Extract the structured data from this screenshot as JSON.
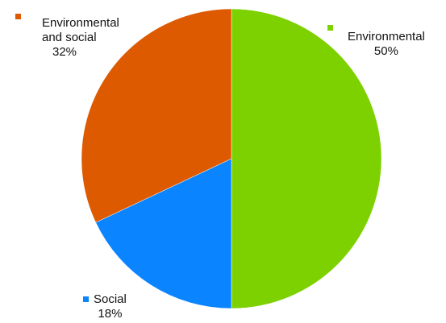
{
  "chart_data": {
    "type": "pie",
    "title": "",
    "slices": [
      {
        "label": "Environmental",
        "value": 50,
        "display": "50%",
        "color": "#7dd100"
      },
      {
        "label": "Social",
        "value": 18,
        "display": "18%",
        "color": "#0a84ff"
      },
      {
        "label": "Environmental and social",
        "value": 32,
        "display": "32%",
        "color": "#dd5a00"
      }
    ],
    "start_angle": "top, clockwise",
    "legend": "inline labels next to slices"
  },
  "labels": {
    "env_and_social_line1": "Environmental",
    "env_and_social_line2": "and social"
  }
}
